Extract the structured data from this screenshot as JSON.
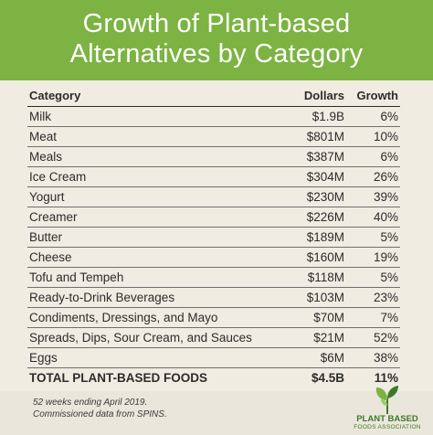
{
  "title_line1": "Growth of Plant-based",
  "title_line2": "Alternatives by Category",
  "colors": {
    "header_green": "#7cb342",
    "background": "#f1ece2",
    "logo_green": "#3d7a28"
  },
  "chart_data": {
    "type": "table",
    "title": "Growth of Plant-based Alternatives by Category",
    "columns": [
      "Category",
      "Dollars",
      "Growth"
    ],
    "rows": [
      [
        "Milk",
        "$1.9B",
        "6%"
      ],
      [
        "Meat",
        "$801M",
        "10%"
      ],
      [
        "Meals",
        "$387M",
        "6%"
      ],
      [
        "Ice Cream",
        "$304M",
        "26%"
      ],
      [
        "Yogurt",
        "$230M",
        "39%"
      ],
      [
        "Creamer",
        "$226M",
        "40%"
      ],
      [
        "Butter",
        "$189M",
        "5%"
      ],
      [
        "Cheese",
        "$160M",
        "19%"
      ],
      [
        "Tofu and Tempeh",
        "$118M",
        "5%"
      ],
      [
        "Ready-to-Drink Beverages",
        "$103M",
        "23%"
      ],
      [
        "Condiments, Dressings, and Mayo",
        "$70M",
        "7%"
      ],
      [
        "Spreads, Dips, Sour Cream, and Sauces",
        "$21M",
        "52%"
      ],
      [
        "Eggs",
        "$6M",
        "38%"
      ]
    ],
    "total": [
      "TOTAL PLANT-BASED FOODS",
      "$4.5B",
      "11%"
    ]
  },
  "footnote_line1": "52 weeks ending April 2019.",
  "footnote_line2": "Commissioned data from SPINS.",
  "logo": {
    "icon": "leaf-sprout-icon",
    "line1": "PLANT BASED",
    "line2": "FOODS ASSOCIATION"
  }
}
